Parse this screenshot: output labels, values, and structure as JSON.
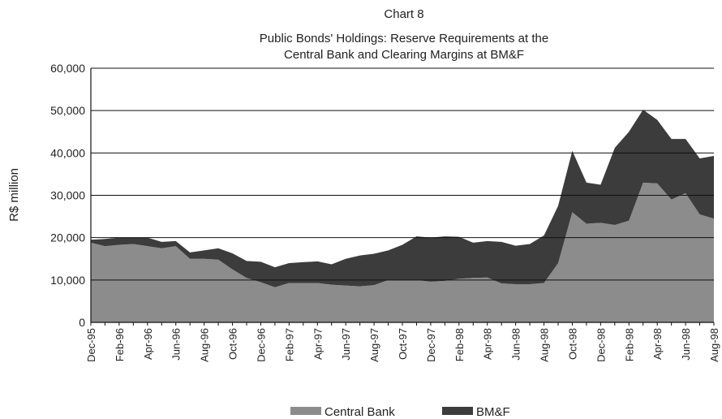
{
  "chart_label": "Chart 8",
  "chart_data": {
    "type": "area",
    "stacked": true,
    "title": "Public Bonds' Holdings: Reserve Requirements at the Central Bank and Clearing Margins at BM&F",
    "title_lines": [
      "Public Bonds' Holdings: Reserve Requirements at the",
      "Central Bank and Clearing Margins at BM&F"
    ],
    "xlabel": "",
    "ylabel": "R$ million",
    "ylim": [
      0,
      60000
    ],
    "yticks": [
      0,
      10000,
      20000,
      30000,
      40000,
      50000,
      60000
    ],
    "ytick_labels": [
      "0",
      "10,000",
      "20,000",
      "30,000",
      "40,000",
      "50,000",
      "60,000"
    ],
    "grid": "horizontal",
    "legend_position": "bottom",
    "categories": [
      "Dec-95",
      "Jan-96",
      "Feb-96",
      "Mar-96",
      "Apr-96",
      "May-96",
      "Jun-96",
      "Jul-96",
      "Aug-96",
      "Sep-96",
      "Oct-96",
      "Nov-96",
      "Dec-96",
      "Jan-97",
      "Feb-97",
      "Mar-97",
      "Apr-97",
      "May-97",
      "Jun-97",
      "Jul-97",
      "Aug-97",
      "Sep-97",
      "Oct-97",
      "Nov-97",
      "Dec-97",
      "Jan-98",
      "Feb-98",
      "Mar-98",
      "Apr-98",
      "May-98",
      "Jun-98",
      "Jul-98",
      "Aug-98",
      "Sep-98",
      "Oct-98",
      "Nov-98",
      "Dec-98",
      "Jan-99",
      "Feb-99",
      "Mar-99",
      "Apr-99",
      "May-99",
      "Jun-99",
      "Jul-99",
      "Aug-99"
    ],
    "tick_labels": [
      "Dec-95",
      "Feb-96",
      "Apr-96",
      "Jun-96",
      "Aug-96",
      "Oct-96",
      "Dec-96",
      "Feb-97",
      "Apr-97",
      "Jun-97",
      "Aug-97",
      "Oct-97",
      "Dec-97",
      "Feb-98",
      "Apr-98",
      "Jun-98",
      "Aug-98",
      "Oct-98",
      "Dec-98",
      "Feb-98",
      "Apr-98",
      "Jun-98",
      "Aug-98"
    ],
    "series": [
      {
        "name": "Central Bank",
        "color": "#8c8c8c",
        "values": [
          18800,
          18000,
          18300,
          18500,
          18000,
          17500,
          18000,
          15000,
          15000,
          14800,
          12500,
          10500,
          9500,
          8300,
          9300,
          9300,
          9300,
          8900,
          8700,
          8500,
          8800,
          10000,
          10000,
          10000,
          9600,
          9800,
          10300,
          10500,
          10600,
          9200,
          9000,
          9000,
          9300,
          14000,
          26000,
          23300,
          23500,
          23000,
          24000,
          33000,
          32800,
          29000,
          30500,
          25500,
          24500
        ]
      },
      {
        "name": "BM&F",
        "color": "#3c3c3c",
        "values": [
          700,
          1700,
          1700,
          1500,
          2000,
          1500,
          1200,
          1500,
          2000,
          2700,
          3800,
          4000,
          4800,
          4700,
          4700,
          4900,
          5100,
          4800,
          6300,
          7300,
          7400,
          7000,
          8300,
          10300,
          10400,
          10500,
          9900,
          8300,
          8600,
          9800,
          9100,
          9500,
          11200,
          13500,
          14500,
          9700,
          9000,
          18200,
          21000,
          17200,
          15000,
          14300,
          12800,
          13200,
          14800
        ]
      }
    ]
  },
  "legend": [
    {
      "label": "Central Bank",
      "color": "#8c8c8c"
    },
    {
      "label": "BM&F",
      "color": "#3c3c3c"
    }
  ]
}
